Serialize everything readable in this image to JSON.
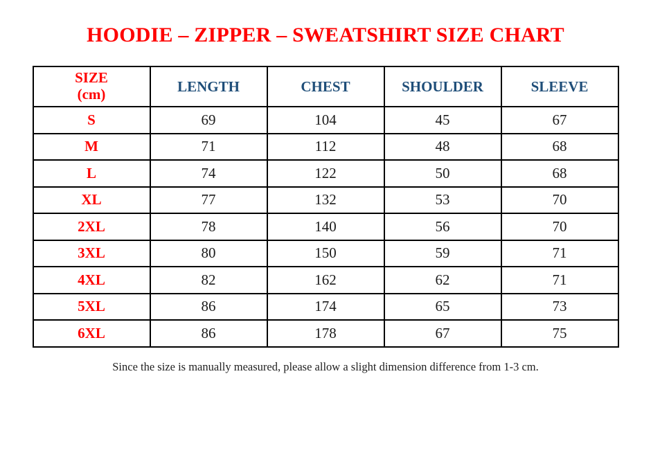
{
  "artifact": {
    "dot": "."
  },
  "title": "HOODIE – ZIPPER – SWEATSHIRT SIZE CHART",
  "table": {
    "size_header": {
      "line1": "SIZE",
      "line2": "(cm)"
    },
    "columns": [
      "SIZE (cm)",
      "LENGTH",
      "CHEST",
      "SHOULDER",
      "SLEEVE"
    ],
    "rows": [
      {
        "size": "S",
        "length": "69",
        "chest": "104",
        "shoulder": "45",
        "sleeve": "67"
      },
      {
        "size": "M",
        "length": "71",
        "chest": "112",
        "shoulder": "48",
        "sleeve": "68"
      },
      {
        "size": "L",
        "length": "74",
        "chest": "122",
        "shoulder": "50",
        "sleeve": "68"
      },
      {
        "size": "XL",
        "length": "77",
        "chest": "132",
        "shoulder": "53",
        "sleeve": "70"
      },
      {
        "size": "2XL",
        "length": "78",
        "chest": "140",
        "shoulder": "56",
        "sleeve": "70"
      },
      {
        "size": "3XL",
        "length": "80",
        "chest": "150",
        "shoulder": "59",
        "sleeve": "71"
      },
      {
        "size": "4XL",
        "length": "82",
        "chest": "162",
        "shoulder": "62",
        "sleeve": "71"
      },
      {
        "size": "5XL",
        "length": "86",
        "chest": "174",
        "shoulder": "65",
        "sleeve": "73"
      },
      {
        "size": "6XL",
        "length": "86",
        "chest": "178",
        "shoulder": "67",
        "sleeve": "75"
      }
    ]
  },
  "footnote": "Since the size is manually measured, please allow a slight dimension difference from 1-3 cm.",
  "colors": {
    "title_red": "#FF0000",
    "size_red": "#FF0000",
    "header_blue": "#1F4E79",
    "value_black": "#1A1A1A",
    "border_black": "#000000",
    "background": "#FFFFFF"
  }
}
